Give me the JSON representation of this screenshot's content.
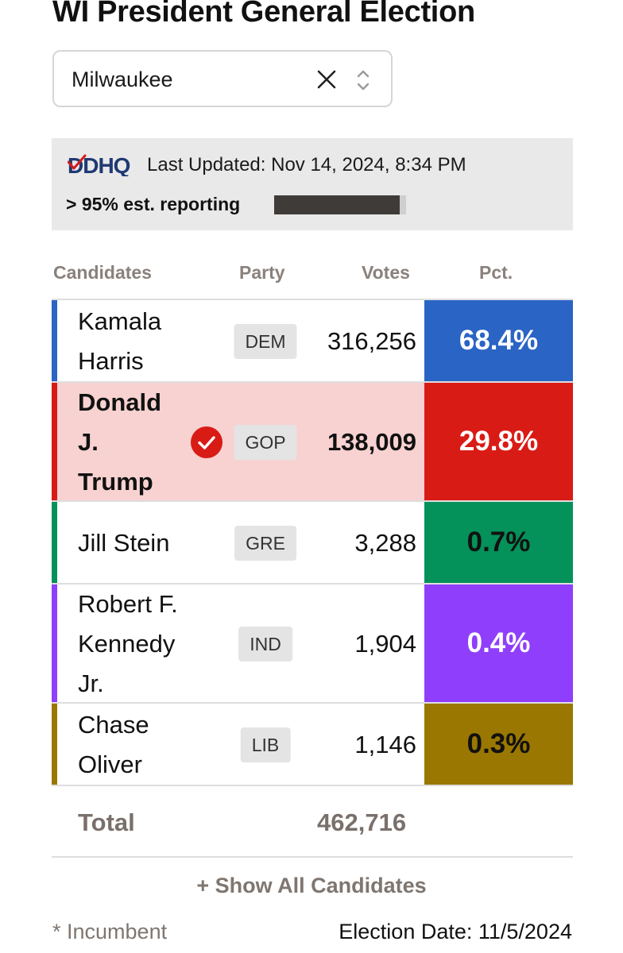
{
  "page_title": "WI President General Election",
  "county_select": {
    "value": "Milwaukee"
  },
  "info": {
    "logo_text": "DDHQ",
    "last_updated": "Last Updated: Nov 14, 2024, 8:34 PM",
    "reporting_text": "> 95% est. reporting",
    "reporting_fraction": 0.95
  },
  "columns": {
    "candidates": "Candidates",
    "party": "Party",
    "votes": "Votes",
    "pct": "Pct."
  },
  "candidates": [
    {
      "name_lines": [
        "Kamala",
        "Harris"
      ],
      "party": "DEM",
      "votes": "316,256",
      "pct": "68.4%",
      "winner": false,
      "color": "#2a64c4",
      "pct_text_color": "#ffffff",
      "row_bg": "#ffffff"
    },
    {
      "name_lines": [
        "Donald",
        "J.",
        "Trump"
      ],
      "party": "GOP",
      "votes": "138,009",
      "pct": "29.8%",
      "winner": true,
      "color": "#d91b16",
      "pct_text_color": "#ffffff",
      "row_bg": "#f7d2d1"
    },
    {
      "name_lines": [
        "Jill Stein"
      ],
      "party": "GRE",
      "votes": "3,288",
      "pct": "0.7%",
      "winner": false,
      "color": "#05915a",
      "pct_text_color": "#111111",
      "row_bg": "#ffffff"
    },
    {
      "name_lines": [
        "Robert F.",
        "Kennedy",
        "Jr."
      ],
      "party": "IND",
      "votes": "1,904",
      "pct": "0.4%",
      "winner": false,
      "color": "#8f3ffb",
      "pct_text_color": "#ffffff",
      "row_bg": "#ffffff"
    },
    {
      "name_lines": [
        "Chase",
        "Oliver"
      ],
      "party": "LIB",
      "votes": "1,146",
      "pct": "0.3%",
      "winner": false,
      "color": "#9a7700",
      "pct_text_color": "#111111",
      "row_bg": "#ffffff"
    }
  ],
  "total": {
    "label": "Total",
    "votes": "462,716"
  },
  "show_all": "+ Show All Candidates",
  "footer": {
    "incumbent_note": "* Incumbent",
    "election_date": "Election Date: 11/5/2024"
  }
}
